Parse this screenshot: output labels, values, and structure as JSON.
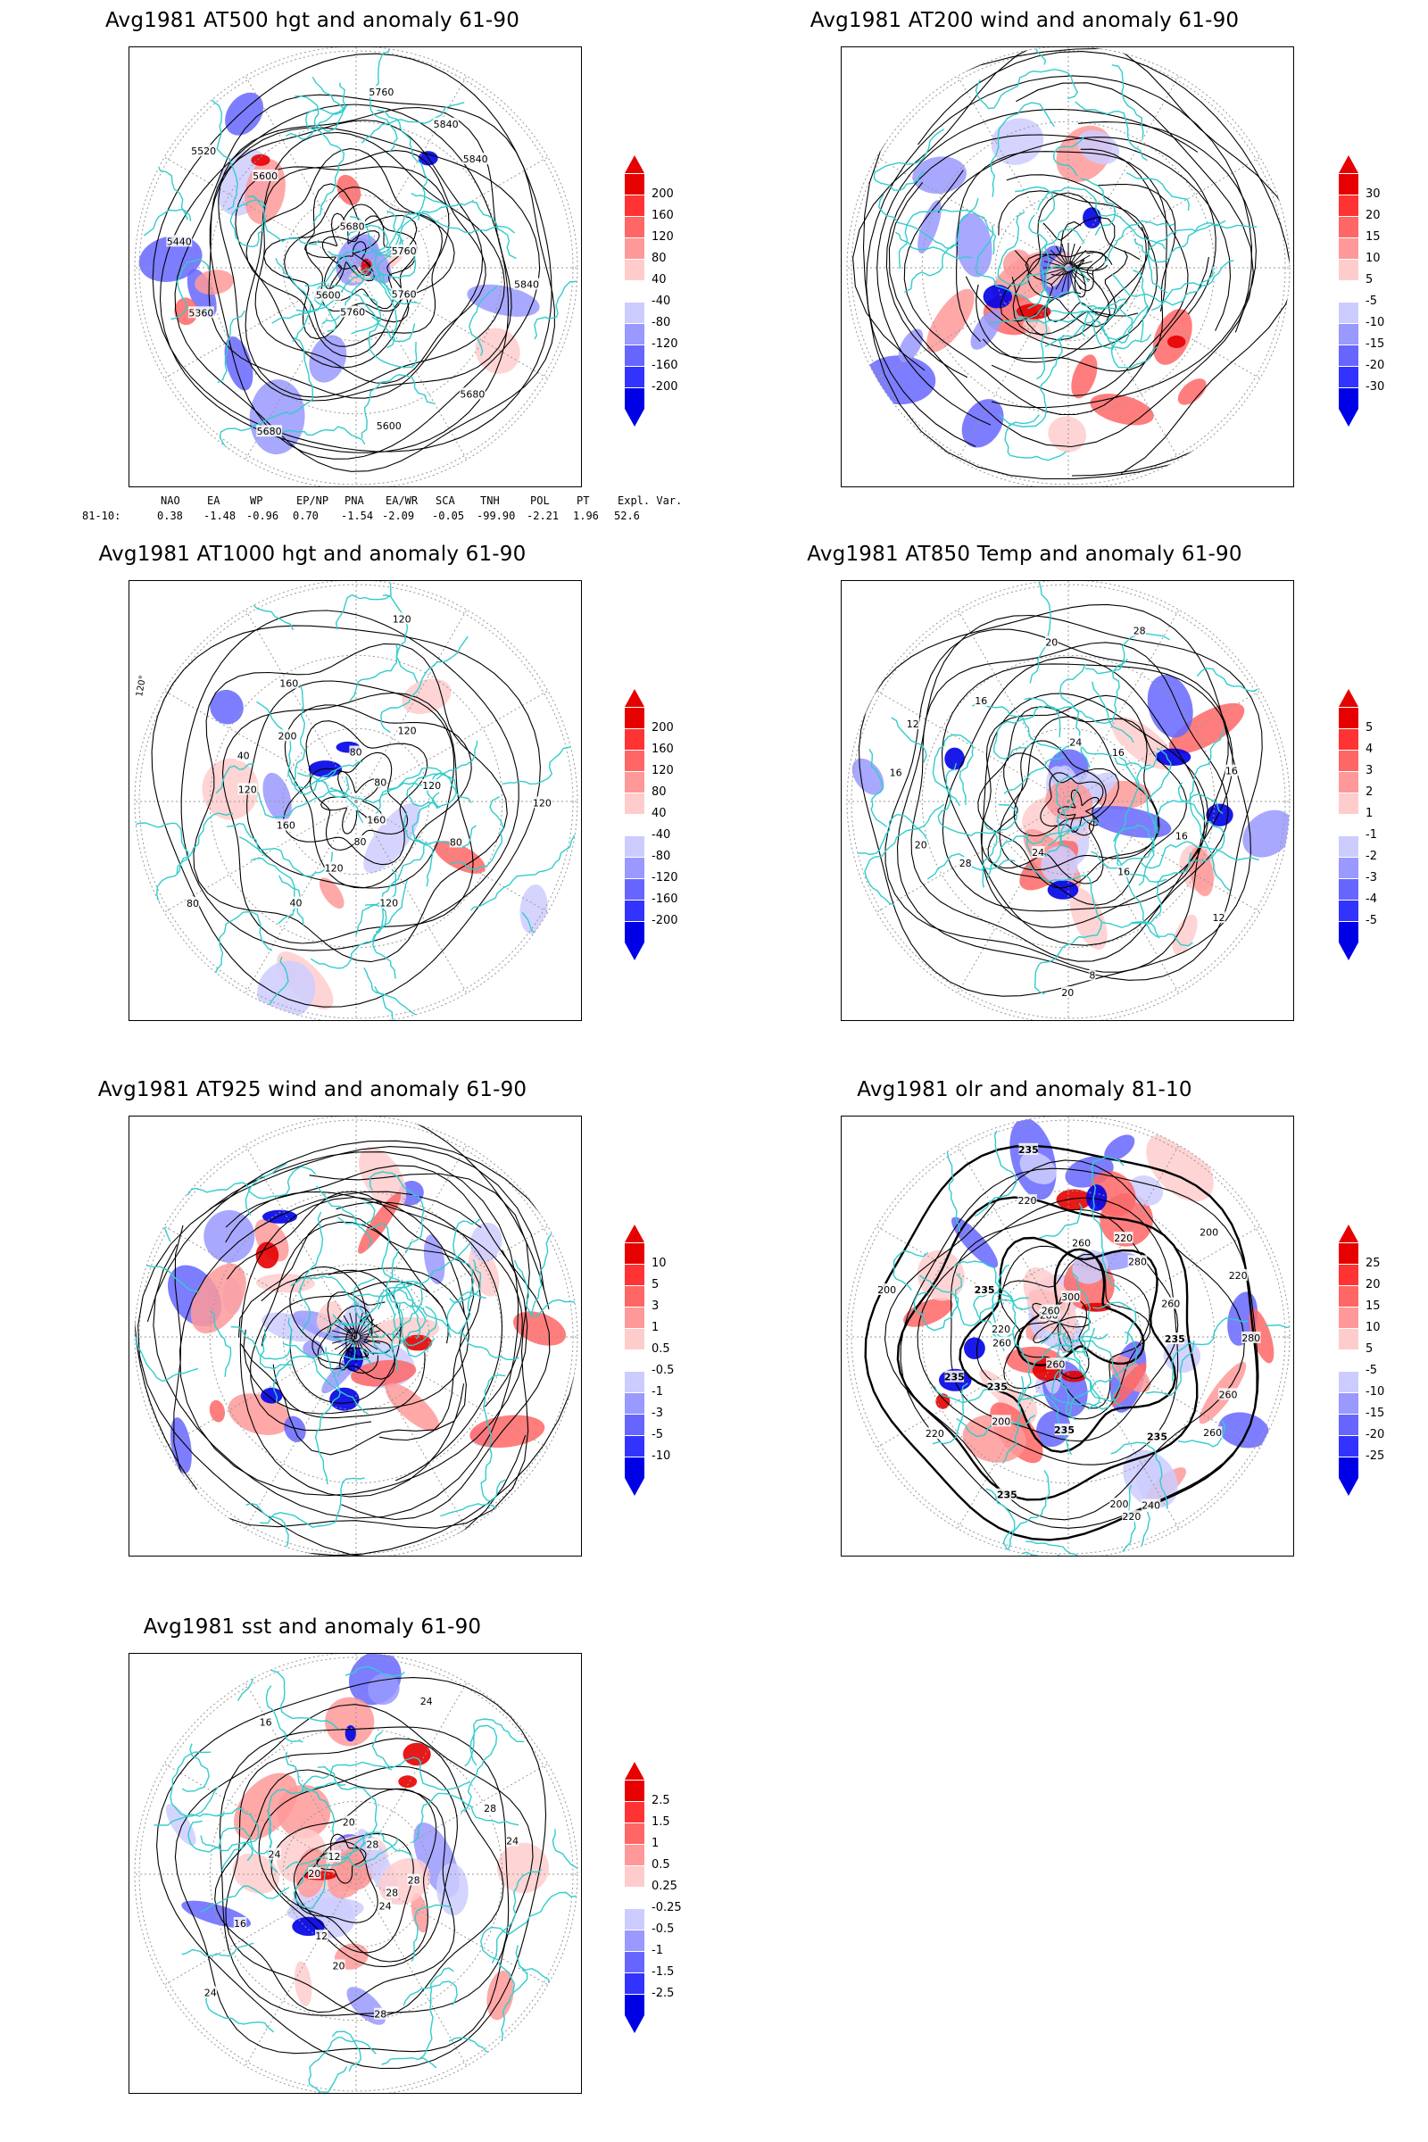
{
  "panels": [
    {
      "id": "at500",
      "title": "Avg1981 AT500 hgt and anomaly 61-90",
      "contour_labels": [
        "5840",
        "5760",
        "5680",
        "5600",
        "5760",
        "5680",
        "5600",
        "5360",
        "5440",
        "5520",
        "5600",
        "5680",
        "5760",
        "5840",
        "5840",
        "5760"
      ],
      "colorbar": [
        "200",
        "160",
        "120",
        "80",
        "40",
        "-40",
        "-80",
        "-120",
        "-160",
        "-200"
      ]
    },
    {
      "id": "at200",
      "title": "Avg1981 AT200 wind and anomaly 61-90",
      "contour_labels": [],
      "colorbar": [
        "30",
        "20",
        "15",
        "10",
        "5",
        "-5",
        "-10",
        "-15",
        "-20",
        "-30"
      ]
    },
    {
      "id": "at1000",
      "title": "Avg1981 AT1000 hgt and anomaly 61-90",
      "contour_labels": [
        "120",
        "80",
        "160",
        "120",
        "80",
        "120",
        "40",
        "80",
        "160",
        "120",
        "40",
        "200",
        "160",
        "80",
        "120",
        "120",
        "80",
        "120"
      ],
      "colorbar": [
        "200",
        "160",
        "120",
        "80",
        "40",
        "-40",
        "-80",
        "-120",
        "-160",
        "-200"
      ],
      "lon_label": "120°"
    },
    {
      "id": "at850",
      "title": "Avg1981 AT850 Temp and anomaly 61-90",
      "contour_labels": [
        "16",
        "12",
        "16",
        "8",
        "20",
        "24",
        "28",
        "20",
        "16",
        "12",
        "16",
        "20",
        "24",
        "28",
        "16",
        "16"
      ],
      "colorbar": [
        "5",
        "4",
        "3",
        "2",
        "1",
        "-1",
        "-2",
        "-3",
        "-4",
        "-5"
      ]
    },
    {
      "id": "at925",
      "title": "Avg1981 AT925 wind and anomaly 61-90",
      "contour_labels": [],
      "colorbar": [
        "10",
        "5",
        "3",
        "1",
        "0.5",
        "-0.5",
        "-1",
        "-3",
        "-5",
        "-10"
      ]
    },
    {
      "id": "olr",
      "title": "Avg1981 olr and anomaly 81-10",
      "contour_labels": [
        "280",
        "260",
        "260",
        "235",
        "240",
        "220",
        "200",
        "235",
        "235",
        "260",
        "200",
        "220",
        "235",
        "235",
        "260",
        "220",
        "200",
        "235",
        "280",
        "260",
        "220",
        "235",
        "300",
        "260",
        "220",
        "280",
        "200",
        "220",
        "260",
        "235"
      ],
      "colorbar": [
        "25",
        "20",
        "15",
        "10",
        "5",
        "-5",
        "-10",
        "-15",
        "-20",
        "-25"
      ]
    },
    {
      "id": "sst",
      "title": "Avg1981 sst and anomaly 61-90",
      "contour_labels": [
        "28",
        "28",
        "24",
        "28",
        "20",
        "12",
        "24",
        "16",
        "20",
        "24",
        "12",
        "16",
        "20",
        "24",
        "28",
        "28",
        "24"
      ],
      "colorbar": [
        "2.5",
        "1.5",
        "1",
        "0.5",
        "0.25",
        "-0.25",
        "-0.5",
        "-1",
        "-1.5",
        "-2.5"
      ]
    }
  ],
  "teleconnection": {
    "headers": [
      "NAO",
      "EA",
      "WP",
      "EP/NP",
      "PNA",
      "EA/WR",
      "SCA",
      "TNH",
      "POL",
      "PT",
      "Expl. Var."
    ],
    "row_label": "81-10:",
    "values": [
      "0.38",
      "-1.48",
      "-0.96",
      "0.70",
      "-1.54",
      "-2.09",
      "-0.05",
      "-99.90",
      "-2.21",
      "1.96",
      "52.6"
    ]
  },
  "colors": {
    "coast": "#33cccc",
    "pos": [
      "#e60000",
      "#ff3333",
      "#ff6666",
      "#ff9999",
      "#ffcccc"
    ],
    "neg": [
      "#ccccff",
      "#9999ff",
      "#6666ff",
      "#3333ff",
      "#0000e6"
    ],
    "contour": "#000000",
    "grid": "#999999"
  }
}
